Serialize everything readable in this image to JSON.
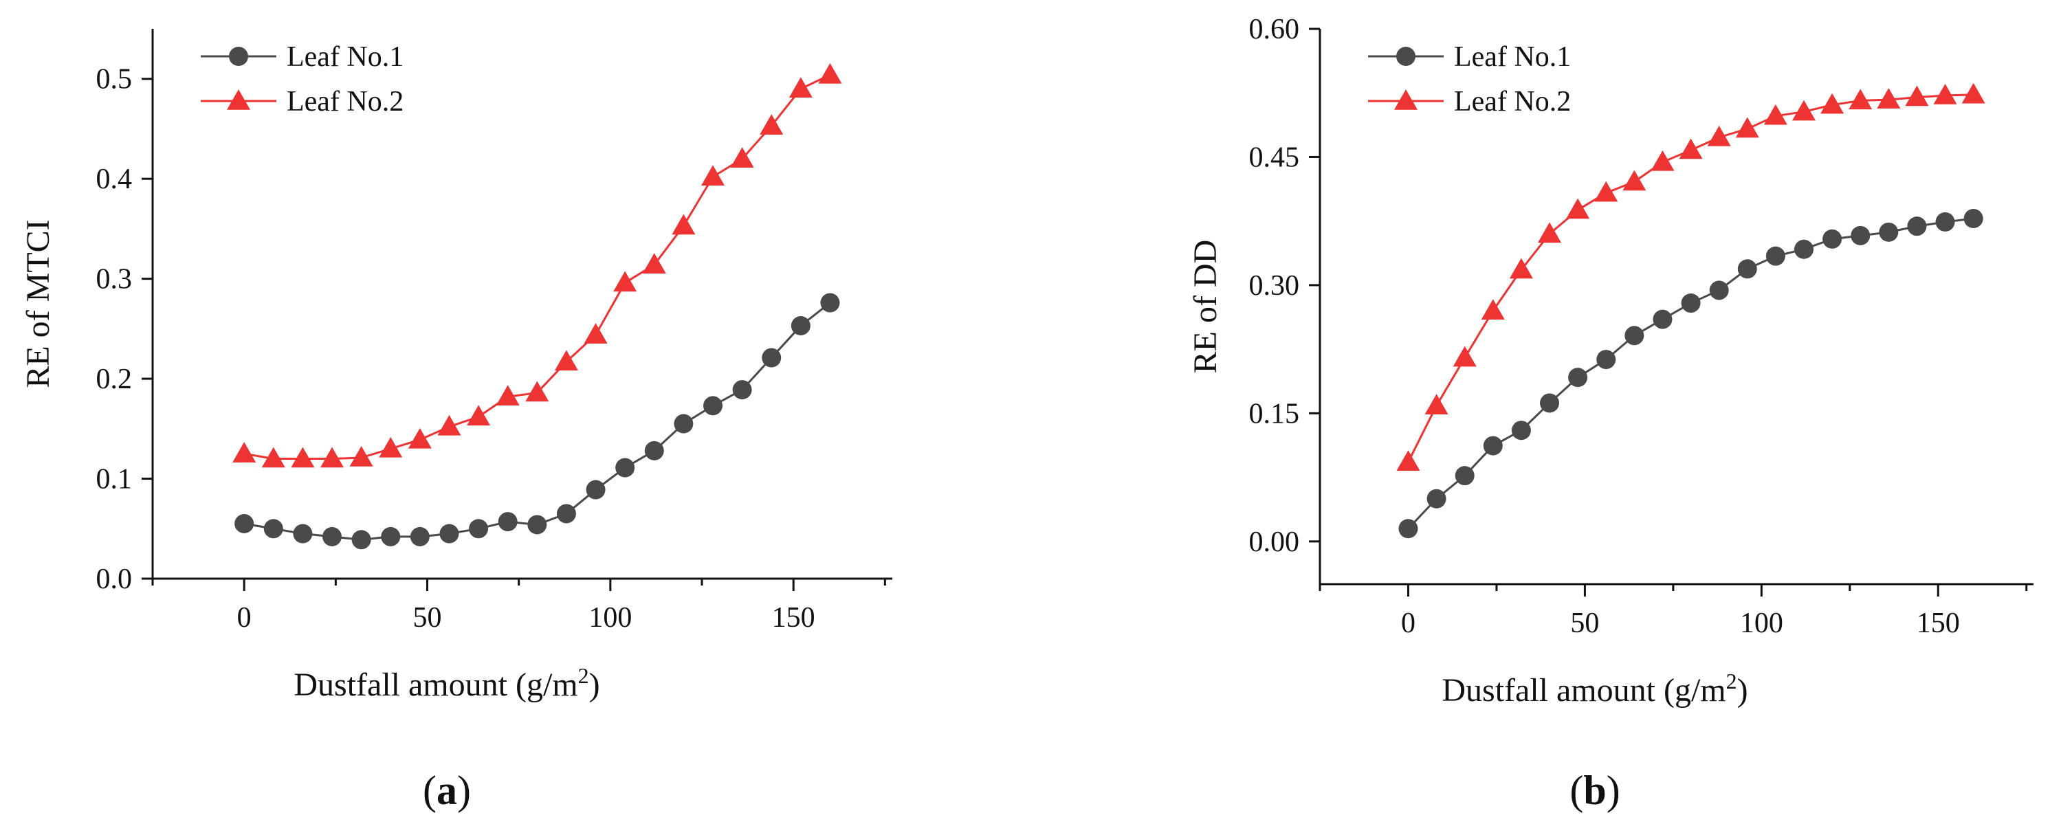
{
  "chart_data": [
    {
      "id": "a",
      "type": "line",
      "panel_label": "a",
      "title": "",
      "xlabel": "Dustfall amount (g/m",
      "xlabel_sup": "2",
      "xlabel_close": ")",
      "ylabel": "RE  of  MTCI",
      "xlim": [
        -25,
        177
      ],
      "ylim": [
        0,
        0.55
      ],
      "xticks": [
        0,
        50,
        100,
        150
      ],
      "yticks": [
        0.0,
        0.1,
        0.2,
        0.3,
        0.4,
        0.5
      ],
      "ytick_labels": [
        "0.0",
        "0.1",
        "0.2",
        "0.3",
        "0.4",
        "0.5"
      ],
      "legend_position": "top-left",
      "x": [
        0,
        8,
        16,
        24,
        32,
        40,
        48,
        56,
        64,
        72,
        80,
        88,
        96,
        104,
        112,
        120,
        128,
        136,
        144,
        152,
        160
      ],
      "series": [
        {
          "name": "Leaf No.1",
          "marker": "circle",
          "color": "#4a4a4a",
          "values": [
            0.055,
            0.05,
            0.045,
            0.042,
            0.039,
            0.042,
            0.042,
            0.045,
            0.05,
            0.057,
            0.054,
            0.065,
            0.089,
            0.111,
            0.128,
            0.155,
            0.173,
            0.189,
            0.221,
            0.253,
            0.276
          ]
        },
        {
          "name": "Leaf No.2",
          "marker": "triangle",
          "color": "#ee3333",
          "values": [
            0.125,
            0.12,
            0.12,
            0.12,
            0.121,
            0.13,
            0.139,
            0.152,
            0.162,
            0.182,
            0.186,
            0.217,
            0.244,
            0.296,
            0.314,
            0.353,
            0.402,
            0.42,
            0.453,
            0.49,
            0.504
          ]
        }
      ]
    },
    {
      "id": "b",
      "type": "line",
      "panel_label": "b",
      "title": "",
      "xlabel": "Dustfall amount (g/m",
      "xlabel_sup": "2",
      "xlabel_close": ")",
      "ylabel": "RE  of  DD",
      "xlim": [
        -25,
        177
      ],
      "ylim": [
        -0.05,
        0.6
      ],
      "xticks": [
        0,
        50,
        100,
        150
      ],
      "yticks": [
        0.0,
        0.15,
        0.3,
        0.45,
        0.6
      ],
      "ytick_labels": [
        "0.00",
        "0.15",
        "0.30",
        "0.45",
        "0.60"
      ],
      "legend_position": "top-left",
      "x": [
        0,
        8,
        16,
        24,
        32,
        40,
        48,
        56,
        64,
        72,
        80,
        88,
        96,
        104,
        112,
        120,
        128,
        136,
        144,
        152,
        160
      ],
      "series": [
        {
          "name": "Leaf No.1",
          "marker": "circle",
          "color": "#4a4a4a",
          "values": [
            0.015,
            0.05,
            0.077,
            0.112,
            0.13,
            0.162,
            0.192,
            0.213,
            0.241,
            0.26,
            0.279,
            0.294,
            0.319,
            0.334,
            0.342,
            0.354,
            0.358,
            0.362,
            0.369,
            0.374,
            0.378
          ]
        },
        {
          "name": "Leaf No.2",
          "marker": "triangle",
          "color": "#ee3333",
          "values": [
            0.093,
            0.159,
            0.215,
            0.27,
            0.318,
            0.36,
            0.388,
            0.408,
            0.421,
            0.444,
            0.458,
            0.473,
            0.483,
            0.498,
            0.503,
            0.511,
            0.516,
            0.517,
            0.52,
            0.522,
            0.523
          ]
        }
      ]
    }
  ]
}
